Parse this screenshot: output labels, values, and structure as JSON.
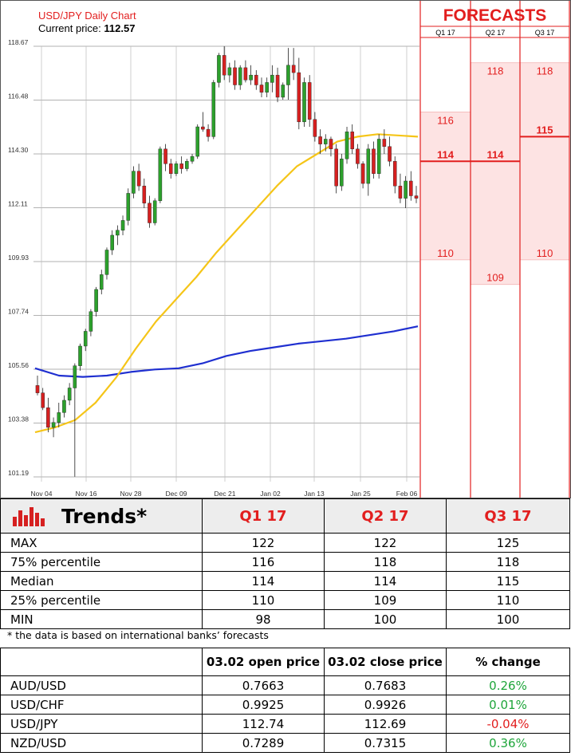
{
  "chart_data": {
    "type": "candlestick",
    "title": "USD/JPY Daily Chart",
    "price_label": "Current price:",
    "current_price": "112.57",
    "y_ticks": [
      "118.67",
      "116.48",
      "114.30",
      "112.11",
      "109.93",
      "107.74",
      "105.56",
      "103.38",
      "101.19"
    ],
    "y_range": [
      101.19,
      118.67
    ],
    "x_ticks": [
      "Nov 04",
      "Nov 16",
      "Nov 28",
      "Dec 09",
      "Dec 21",
      "Jan 02",
      "Jan 13",
      "Jan 25",
      "Feb 06"
    ],
    "candles": [
      [
        104.9,
        105.3,
        104.5,
        104.6
      ],
      [
        104.6,
        104.8,
        103.9,
        104.0
      ],
      [
        104.0,
        104.4,
        103.0,
        103.2
      ],
      [
        103.2,
        103.6,
        102.8,
        103.4
      ],
      [
        103.4,
        104.2,
        103.2,
        103.8
      ],
      [
        103.8,
        104.5,
        103.6,
        104.3
      ],
      [
        104.3,
        105.0,
        104.1,
        104.8
      ],
      [
        104.8,
        105.8,
        101.2,
        105.7
      ],
      [
        105.7,
        106.6,
        105.5,
        106.5
      ],
      [
        106.5,
        107.2,
        106.3,
        107.1
      ],
      [
        107.1,
        108.0,
        106.9,
        107.9
      ],
      [
        107.9,
        108.9,
        107.7,
        108.8
      ],
      [
        108.8,
        109.6,
        108.6,
        109.4
      ],
      [
        109.4,
        110.5,
        109.2,
        110.4
      ],
      [
        110.4,
        111.2,
        110.2,
        111.0
      ],
      [
        111.0,
        111.4,
        110.6,
        111.2
      ],
      [
        111.2,
        111.8,
        111.0,
        111.6
      ],
      [
        111.6,
        112.9,
        111.4,
        112.7
      ],
      [
        112.7,
        113.8,
        112.5,
        113.6
      ],
      [
        113.6,
        113.9,
        112.8,
        113.0
      ],
      [
        113.0,
        113.3,
        112.1,
        112.3
      ],
      [
        112.3,
        112.6,
        111.3,
        111.5
      ],
      [
        111.5,
        112.5,
        111.4,
        112.4
      ],
      [
        112.4,
        114.6,
        112.3,
        114.5
      ],
      [
        114.5,
        114.7,
        113.6,
        113.9
      ],
      [
        113.9,
        114.1,
        113.3,
        113.5
      ],
      [
        113.5,
        114.0,
        113.4,
        113.9
      ],
      [
        113.9,
        114.2,
        113.5,
        113.7
      ],
      [
        113.7,
        114.1,
        113.6,
        114.0
      ],
      [
        114.0,
        114.3,
        113.9,
        114.2
      ],
      [
        114.2,
        115.5,
        114.1,
        115.4
      ],
      [
        115.4,
        116.0,
        115.2,
        115.3
      ],
      [
        115.3,
        115.5,
        114.8,
        115.0
      ],
      [
        115.0,
        117.3,
        114.9,
        117.2
      ],
      [
        117.2,
        118.4,
        117.0,
        118.3
      ],
      [
        118.3,
        118.67,
        117.3,
        117.5
      ],
      [
        117.5,
        118.0,
        117.2,
        117.8
      ],
      [
        117.8,
        118.1,
        116.9,
        117.1
      ],
      [
        117.1,
        117.9,
        116.9,
        117.8
      ],
      [
        117.8,
        118.1,
        117.2,
        117.3
      ],
      [
        117.3,
        117.9,
        117.1,
        117.5
      ],
      [
        117.5,
        117.7,
        116.9,
        117.1
      ],
      [
        117.1,
        117.4,
        116.6,
        116.8
      ],
      [
        116.8,
        117.4,
        116.6,
        117.2
      ],
      [
        117.2,
        117.9,
        116.8,
        117.5
      ],
      [
        117.5,
        117.8,
        116.4,
        116.6
      ],
      [
        116.6,
        117.2,
        116.5,
        117.1
      ],
      [
        117.1,
        118.6,
        116.5,
        117.9
      ],
      [
        117.9,
        118.6,
        117.3,
        117.6
      ],
      [
        117.6,
        118.2,
        115.3,
        115.6
      ],
      [
        115.6,
        117.4,
        115.4,
        117.2
      ],
      [
        117.2,
        117.5,
        115.4,
        115.7
      ],
      [
        115.7,
        116.0,
        114.8,
        115.0
      ],
      [
        115.0,
        115.3,
        114.3,
        114.7
      ],
      [
        114.7,
        115.1,
        114.4,
        114.9
      ],
      [
        114.9,
        115.0,
        114.2,
        114.5
      ],
      [
        114.5,
        114.7,
        112.7,
        113.0
      ],
      [
        113.0,
        114.3,
        112.8,
        114.1
      ],
      [
        114.1,
        115.4,
        113.9,
        115.2
      ],
      [
        115.2,
        115.5,
        114.3,
        114.5
      ],
      [
        114.5,
        114.7,
        113.7,
        113.9
      ],
      [
        113.9,
        114.0,
        112.9,
        113.1
      ],
      [
        113.1,
        114.7,
        112.6,
        114.5
      ],
      [
        114.5,
        114.8,
        113.3,
        113.5
      ],
      [
        113.5,
        115.1,
        113.3,
        114.9
      ],
      [
        114.9,
        115.3,
        114.3,
        114.6
      ],
      [
        114.6,
        115.0,
        113.8,
        114.0
      ],
      [
        114.0,
        114.2,
        112.7,
        113.0
      ],
      [
        113.0,
        113.5,
        112.3,
        112.5
      ],
      [
        112.5,
        113.4,
        112.1,
        113.2
      ],
      [
        113.2,
        113.6,
        112.4,
        112.6
      ],
      [
        112.6,
        113.0,
        112.3,
        112.5
      ]
    ],
    "sma_short": [
      103.0,
      103.2,
      103.5,
      104.2,
      105.2,
      106.4,
      107.5,
      108.4,
      109.3,
      110.3,
      111.2,
      112.1,
      113.0,
      113.8,
      114.3,
      114.8,
      115.0,
      115.1,
      115.05,
      115.0
    ],
    "sma_long": [
      105.6,
      105.3,
      105.25,
      105.3,
      105.45,
      105.55,
      105.6,
      105.8,
      106.1,
      106.3,
      106.45,
      106.6,
      106.7,
      106.8,
      106.95,
      107.1,
      107.3
    ],
    "forecast_title": "FORECASTS",
    "forecast_cols": [
      {
        "label": "Q1 17",
        "p75": "116",
        "median": "114",
        "p25": "110",
        "v_p75": 116,
        "v_median": 114,
        "v_p25": 110
      },
      {
        "label": "Q2 17",
        "p75": "118",
        "median": "114",
        "p25": "109",
        "v_p75": 118,
        "v_median": 114,
        "v_p25": 109
      },
      {
        "label": "Q3 17",
        "p75": "118",
        "median": "115",
        "p25": "110",
        "v_p75": 118,
        "v_median": 115,
        "v_p25": 110
      }
    ]
  },
  "trends": {
    "title": "Trends*",
    "headers": [
      "Q1 17",
      "Q2 17",
      "Q3 17"
    ],
    "rows": [
      {
        "label": "MAX",
        "v": [
          "122",
          "122",
          "125"
        ]
      },
      {
        "label": "75% percentile",
        "v": [
          "116",
          "118",
          "118"
        ]
      },
      {
        "label": "Median",
        "v": [
          "114",
          "114",
          "115"
        ]
      },
      {
        "label": "25% percentile",
        "v": [
          "110",
          "109",
          "110"
        ]
      },
      {
        "label": "MIN",
        "v": [
          "98",
          "100",
          "100"
        ]
      }
    ],
    "note": "* the data is based on international banks’ forecasts"
  },
  "prices": {
    "headers": [
      "03.02 open price",
      "03.02 close price",
      "% change"
    ],
    "rows": [
      {
        "pair": "AUD/USD",
        "open": "0.7663",
        "close": "0.7683",
        "change": "0.26%",
        "dir": "up"
      },
      {
        "pair": "USD/CHF",
        "open": "0.9925",
        "close": "0.9926",
        "change": "0.01%",
        "dir": "up"
      },
      {
        "pair": "USD/JPY",
        "open": "112.74",
        "close": "112.69",
        "change": "-0.04%",
        "dir": "down"
      },
      {
        "pair": "NZD/USD",
        "open": "0.7289",
        "close": "0.7315",
        "change": "0.36%",
        "dir": "up"
      }
    ]
  },
  "colors": {
    "bull": "#2ca02c",
    "bear": "#d62020",
    "sma_short": "#f5c518",
    "sma_long": "#1f2fd0",
    "forecast": "#e21e1e",
    "zone": "#fde3e3"
  }
}
